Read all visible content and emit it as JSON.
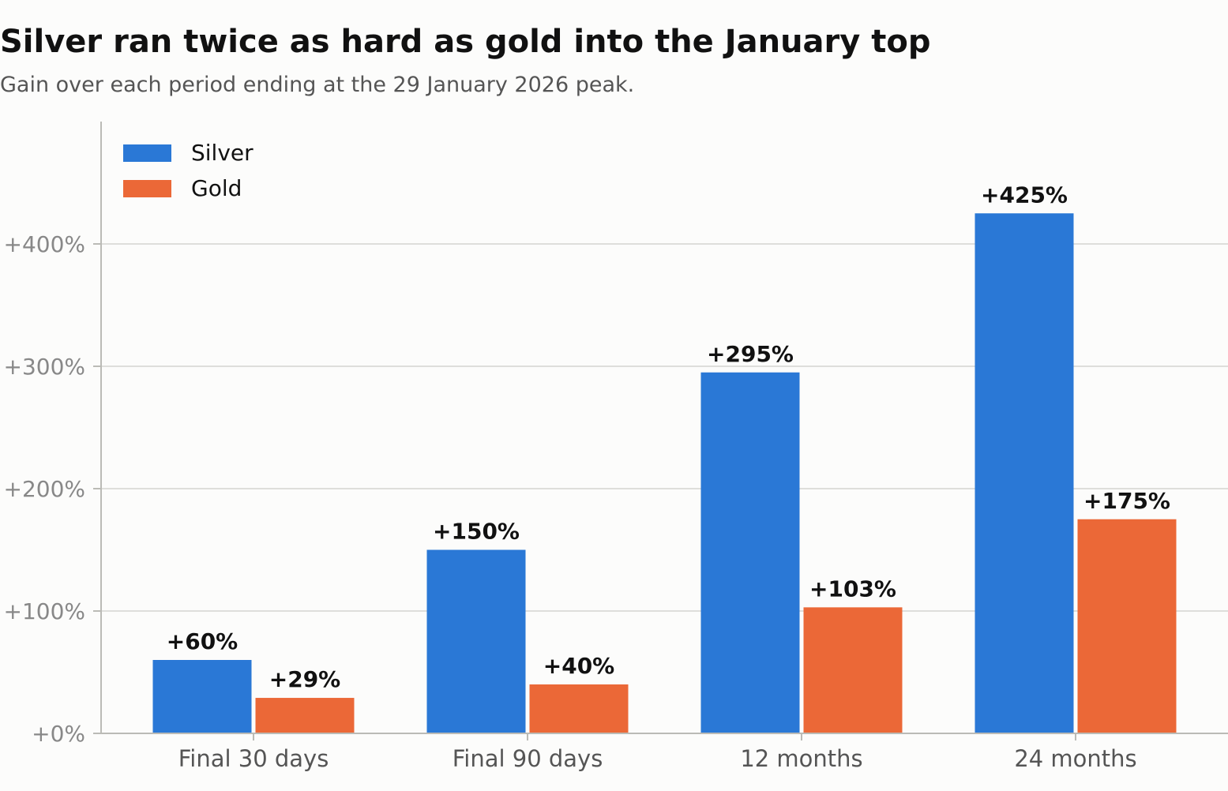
{
  "title": "Silver ran twice as hard as gold into the January top",
  "subtitle": "Gain over each period ending at the 29 January 2026 peak.",
  "chart_data": {
    "type": "bar",
    "title": "Silver ran twice as hard as gold into the January top",
    "subtitle": "Gain over each period ending at the 29 January 2026 peak.",
    "xlabel": "",
    "ylabel": "",
    "categories": [
      "Final 30 days",
      "Final 90 days",
      "12 months",
      "24 months"
    ],
    "series": [
      {
        "name": "Silver",
        "color": "#2a78d6",
        "values": [
          60,
          150,
          295,
          425
        ],
        "labels": [
          "+60%",
          "+150%",
          "+295%",
          "+425%"
        ]
      },
      {
        "name": "Gold",
        "color": "#eb6837",
        "values": [
          29,
          40,
          103,
          175
        ],
        "labels": [
          "+29%",
          "+40%",
          "+103%",
          "+175%"
        ]
      }
    ],
    "ylim": [
      0,
      500
    ],
    "yticks": [
      0,
      100,
      200,
      300,
      400
    ],
    "ytick_labels": [
      "+0%",
      "+100%",
      "+200%",
      "+300%",
      "+400%"
    ],
    "grid": true,
    "legend": "top-left"
  }
}
